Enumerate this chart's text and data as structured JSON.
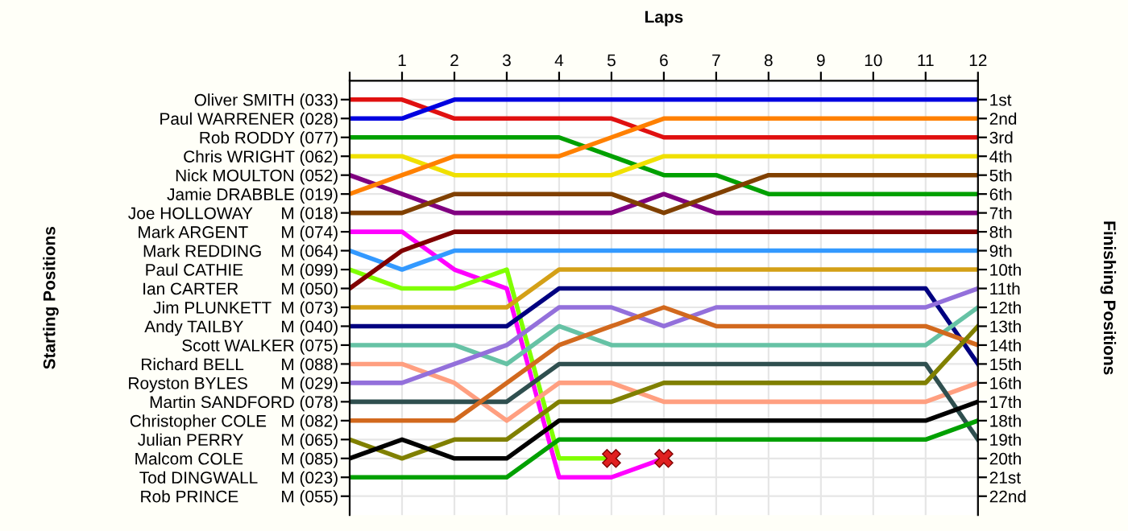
{
  "chart_data": {
    "type": "line",
    "xlabel": "Laps",
    "annotations": [
      "Starting Positions"
    ],
    "ylabel": "Finishing Positions",
    "x": [
      0,
      1,
      2,
      3,
      4,
      5,
      6,
      7,
      8,
      9,
      10,
      11,
      12
    ],
    "xlim": [
      0,
      12
    ],
    "xticks": [
      {
        "value": 0,
        "label": null
      },
      1,
      2,
      3,
      4,
      5,
      6,
      7,
      8,
      9,
      10,
      11,
      12
    ],
    "y_categories": [
      "Oliver SMITH (033)",
      "Paul WARRENER (028)",
      "Rob RODDY (077)",
      "Chris WRIGHT (062)",
      "Nick MOULTON (052)",
      "Jamie DRABBLE (019)",
      "Joe HOLLOWAY      M (018)",
      "Mark ARGENT       M (074)",
      "Mark REDDING    M (064)",
      "Paul CATHIE        M (099)",
      "Ian CARTER         M (050)",
      "Jim PLUNKETT  M (073)",
      "Andy TAILBY        M (040)",
      "Scott WALKER (075)",
      "Richard BELL        M (088)",
      "Royston BYLES       M (029)",
      "Martin SANDFORD (078)",
      "Christopher COLE   M (082)",
      "Julian PERRY        M (065)",
      "Malcom COLE        M (085)",
      "Tod DINGWALL     M (023)",
      "Rob PRINCE         M (055)"
    ],
    "ylim": [
      23,
      0
    ],
    "yticks": [
      {
        "value": 1,
        "label": "1st"
      },
      {
        "value": 2,
        "label": "2nd"
      },
      {
        "value": 3,
        "label": "3rd"
      },
      {
        "value": 4,
        "label": "4th"
      },
      {
        "value": 5,
        "label": "5th"
      },
      {
        "value": 6,
        "label": "6th"
      },
      {
        "value": 7,
        "label": "7th"
      },
      {
        "value": 8,
        "label": "8th"
      },
      {
        "value": 9,
        "label": "9th"
      },
      {
        "value": 10,
        "label": "10th"
      },
      {
        "value": 11,
        "label": "11th"
      },
      {
        "value": 12,
        "label": "12th"
      },
      {
        "value": 13,
        "label": "13th"
      },
      {
        "value": 14,
        "label": "14th"
      },
      {
        "value": 15,
        "label": "15th"
      },
      {
        "value": 16,
        "label": "16th"
      },
      {
        "value": 17,
        "label": "17th"
      },
      {
        "value": 18,
        "label": "18th"
      },
      {
        "value": 19,
        "label": "19th"
      },
      {
        "value": 20,
        "label": "20th"
      },
      {
        "value": 21,
        "label": "21st"
      },
      {
        "value": 22,
        "label": "22nd"
      }
    ],
    "grid": true,
    "marker": "none",
    "line_style": "solid",
    "series": [
      {
        "color": "#e01010",
        "values": [
          1,
          1,
          2,
          2,
          2,
          2,
          3,
          3,
          3,
          3,
          3,
          3,
          3
        ]
      },
      {
        "color": "#0000e0",
        "values": [
          2,
          2,
          1,
          1,
          1,
          1,
          1,
          1,
          1,
          1,
          1,
          1,
          1
        ]
      },
      {
        "color": "#00a000",
        "values": [
          3,
          3,
          3,
          3,
          3,
          4,
          5,
          5,
          6,
          6,
          6,
          6,
          6
        ]
      },
      {
        "color": "#f0e000",
        "values": [
          4,
          4,
          5,
          5,
          5,
          5,
          4,
          4,
          4,
          4,
          4,
          4,
          4
        ]
      },
      {
        "color": "#800080",
        "values": [
          5,
          6,
          7,
          7,
          7,
          7,
          6,
          7,
          7,
          7,
          7,
          7,
          7
        ]
      },
      {
        "color": "#ff8000",
        "values": [
          6,
          5,
          4,
          4,
          4,
          3,
          2,
          2,
          2,
          2,
          2,
          2,
          2
        ]
      },
      {
        "color": "#804000",
        "values": [
          7,
          7,
          6,
          6,
          6,
          6,
          7,
          6,
          5,
          5,
          5,
          5,
          5
        ]
      },
      {
        "color": "#ff00ff",
        "values": [
          8,
          8,
          10,
          11,
          21,
          21,
          20,
          null,
          null,
          null,
          null,
          null,
          null
        ]
      },
      {
        "color": "#3399ff",
        "values": [
          9,
          10,
          9,
          9,
          9,
          9,
          9,
          9,
          9,
          9,
          9,
          9,
          9
        ]
      },
      {
        "color": "#80ff00",
        "values": [
          10,
          11,
          11,
          10,
          20,
          20,
          null,
          null,
          null,
          null,
          null,
          null,
          null
        ]
      },
      {
        "color": "#800000",
        "values": [
          11,
          9,
          8,
          8,
          8,
          8,
          8,
          8,
          8,
          8,
          8,
          8,
          8
        ]
      },
      {
        "color": "#d4a017",
        "values": [
          12,
          12,
          12,
          12,
          10,
          10,
          10,
          10,
          10,
          10,
          10,
          10,
          10
        ]
      },
      {
        "color": "#000080",
        "values": [
          13,
          13,
          13,
          13,
          11,
          11,
          11,
          11,
          11,
          11,
          11,
          11,
          15
        ]
      },
      {
        "color": "#66c2a5",
        "values": [
          14,
          14,
          14,
          15,
          13,
          14,
          14,
          14,
          14,
          14,
          14,
          14,
          12
        ]
      },
      {
        "color": "#ff9f80",
        "values": [
          15,
          15,
          16,
          18,
          16,
          16,
          17,
          17,
          17,
          17,
          17,
          17,
          16
        ]
      },
      {
        "color": "#9370db",
        "values": [
          16,
          16,
          15,
          14,
          12,
          12,
          13,
          12,
          12,
          12,
          12,
          12,
          11
        ]
      },
      {
        "color": "#2f4f4f",
        "values": [
          17,
          17,
          17,
          17,
          15,
          15,
          15,
          15,
          15,
          15,
          15,
          15,
          19
        ]
      },
      {
        "color": "#d2691e",
        "values": [
          18,
          18,
          18,
          16,
          14,
          13,
          12,
          13,
          13,
          13,
          13,
          13,
          14
        ]
      },
      {
        "color": "#808000",
        "values": [
          19,
          20,
          19,
          19,
          17,
          17,
          16,
          16,
          16,
          16,
          16,
          16,
          13
        ]
      },
      {
        "color": "#000000",
        "values": [
          20,
          19,
          20,
          20,
          18,
          18,
          18,
          18,
          18,
          18,
          18,
          18,
          17
        ]
      },
      {
        "color": "#00a000",
        "values": [
          21,
          21,
          21,
          21,
          19,
          19,
          19,
          19,
          19,
          19,
          19,
          19,
          18
        ]
      },
      {
        "type": "scatter",
        "marker": "cross",
        "color": "#e02020",
        "x": [
          5,
          6
        ],
        "values": [
          20,
          20
        ]
      }
    ]
  }
}
